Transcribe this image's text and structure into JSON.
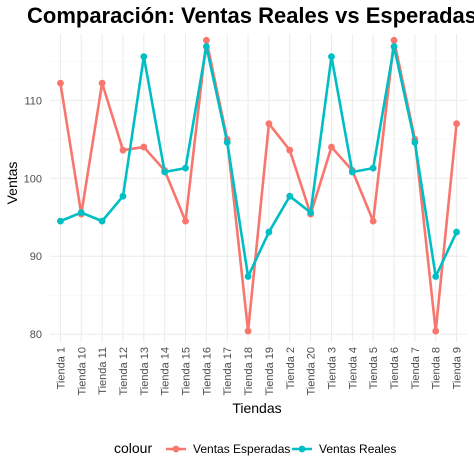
{
  "chart_data": {
    "type": "line",
    "title": "Comparación: Ventas Reales vs Esperadas",
    "xlabel": "Tiendas",
    "ylabel": "Ventas",
    "categories": [
      "Tienda 1",
      "Tienda 10",
      "Tienda 11",
      "Tienda 12",
      "Tienda 13",
      "Tienda 14",
      "Tienda 15",
      "Tienda 16",
      "Tienda 17",
      "Tienda 18",
      "Tienda 19",
      "Tienda 2",
      "Tienda 20",
      "Tienda 3",
      "Tienda 4",
      "Tienda 5",
      "Tienda 6",
      "Tienda 7",
      "Tienda 8",
      "Tienda 9"
    ],
    "ylim": [
      79,
      118.5
    ],
    "yticks": [
      80,
      90,
      100,
      110
    ],
    "grid": true,
    "legend_title": "colour",
    "legend_position": "bottom",
    "series": [
      {
        "name": "Ventas Esperadas",
        "color": "#F8766D",
        "values": [
          112.2,
          95.4,
          112.2,
          103.6,
          104.0,
          101.0,
          94.5,
          117.7,
          105.0,
          80.4,
          107.0,
          103.6,
          95.4,
          104.0,
          101.0,
          94.5,
          117.7,
          105.0,
          80.4,
          107.0
        ]
      },
      {
        "name": "Ventas Reales",
        "color": "#00BFC4",
        "values": [
          94.5,
          95.6,
          94.5,
          97.7,
          115.6,
          100.8,
          101.3,
          116.9,
          104.6,
          87.4,
          93.1,
          97.7,
          95.6,
          115.6,
          100.8,
          101.3,
          116.9,
          104.6,
          87.4,
          93.1
        ]
      }
    ]
  }
}
